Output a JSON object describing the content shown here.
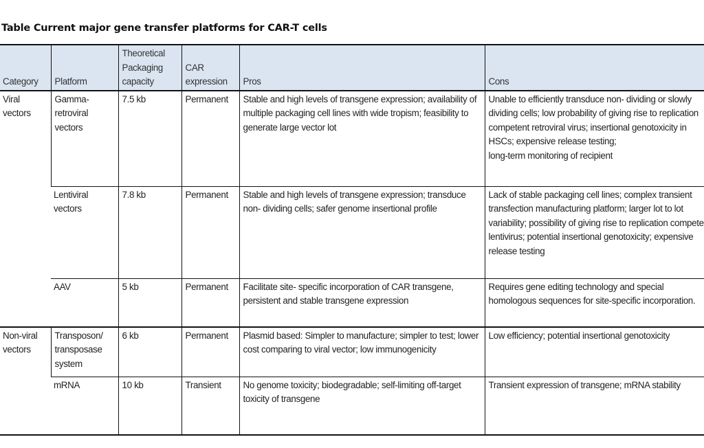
{
  "title": "Table Current major gene transfer platforms for CAR-T cells",
  "colors": {
    "header_bg": "#dbe5f1",
    "border": "#111111"
  },
  "headers": {
    "category": "Category",
    "platform": "Platform",
    "capacity": "Theoretical Packaging capacity",
    "expression": "CAR expression",
    "pros": "Pros",
    "cons": "Cons"
  },
  "groups": [
    {
      "category": "Viral vectors"
    },
    {
      "category": "Non-viral vectors"
    }
  ],
  "rows": [
    {
      "platform": "Gamma-retroviral vectors",
      "capacity": "7.5 kb",
      "expression": "Permanent",
      "pros": "Stable and high levels of transgene expression; availability of multiple packaging cell lines with wide tropism; feasibility to generate large vector lot",
      "cons": "Unable to efficiently transduce non- dividing or slowly dividing cells; low probability of giving rise to replication competent retroviral virus; insertional genotoxicity in HSCs; expensive release testing;",
      "cons2": "long-term monitoring of recipient"
    },
    {
      "platform": "Lentiviral vectors",
      "capacity": "7.8 kb",
      "expression": "Permanent",
      "pros": "Stable and high levels of transgene expression; transduce non- dividing cells; safer genome insertional profile",
      "cons": "Lack of stable packaging cell lines; complex transient transfection manufacturing platform; larger lot to lot variability; possibility of giving rise to replication competent lentivirus; potential insertional genotoxicity; expensive release testing"
    },
    {
      "platform": "AAV",
      "capacity": "5 kb",
      "expression": "Permanent",
      "pros": "Facilitate site- specific incorporation of CAR transgene, persistent and stable transgene expression",
      "cons": "Requires gene editing technology and special homologous sequences for site-specific incorporation."
    },
    {
      "platform": "Transposon/ transposase system",
      "capacity": "6 kb",
      "expression": "Permanent",
      "pros": "Plasmid based: Simpler to manufacture; simpler to test; lower cost comparing to viral vector; low immunogenicity",
      "cons": "Low efficiency; potential insertional genotoxicity"
    },
    {
      "platform": "mRNA",
      "capacity": "10 kb",
      "expression": "Transient",
      "pros": "No genome toxicity; biodegradable; self-limiting off-target toxicity of transgene",
      "cons": "Transient expression of transgene; mRNA stability"
    }
  ]
}
